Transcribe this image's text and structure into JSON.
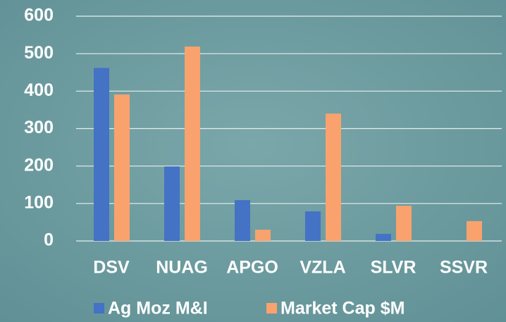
{
  "chart_data": {
    "type": "bar",
    "categories": [
      "DSV",
      "NUAG",
      "APGO",
      "VZLA",
      "SLVR",
      "SSVR"
    ],
    "series": [
      {
        "name": "Ag Moz M&I",
        "color": "#4472c4",
        "values": [
          462,
          199,
          109,
          79,
          19,
          0
        ]
      },
      {
        "name": "Market Cap $M",
        "color": "#f9a26e",
        "values": [
          391,
          519,
          30,
          340,
          94,
          53
        ]
      }
    ],
    "ylim": [
      0,
      600
    ],
    "yticks": [
      0,
      100,
      200,
      300,
      400,
      500,
      600
    ],
    "grid": true,
    "legend": "bottom"
  }
}
